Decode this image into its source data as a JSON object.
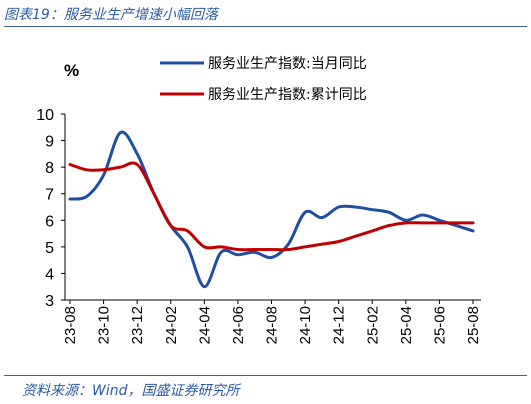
{
  "title": "图表19：服务业生产增速小幅回落",
  "source": "资料来源：Wind，国盛证券研究所",
  "chart_data": {
    "type": "line",
    "unit_label": "%",
    "x": [
      "23-08",
      "23-09",
      "23-10",
      "23-11",
      "23-12",
      "24-01",
      "24-02",
      "24-03",
      "24-04",
      "24-05",
      "24-06",
      "24-07",
      "24-08",
      "24-09",
      "24-10",
      "24-11",
      "24-12",
      "25-01",
      "25-02",
      "25-03",
      "25-04",
      "25-05",
      "25-06",
      "25-07",
      "25-08"
    ],
    "x_tick_labels": [
      "23-08",
      "23-10",
      "23-12",
      "24-02",
      "24-04",
      "24-06",
      "24-08",
      "24-10",
      "24-12",
      "25-02",
      "25-04",
      "25-06",
      "25-08"
    ],
    "ylim": [
      3,
      10
    ],
    "y_ticks": [
      3,
      4,
      5,
      6,
      7,
      8,
      9,
      10
    ],
    "legend_position": "top-right",
    "series": [
      {
        "name": "服务业生产指数:当月同比",
        "color": "#1f4fa3",
        "values": [
          6.8,
          6.9,
          7.7,
          9.3,
          8.5,
          7.0,
          5.8,
          5.0,
          3.5,
          4.8,
          4.7,
          4.8,
          4.6,
          5.1,
          6.3,
          6.1,
          6.5,
          6.5,
          6.4,
          6.3,
          6.0,
          6.2,
          6.0,
          5.8,
          5.6
        ]
      },
      {
        "name": "服务业生产指数:累计同比",
        "color": "#c00000",
        "values": [
          8.1,
          7.9,
          7.9,
          8.0,
          8.1,
          7.0,
          5.8,
          5.6,
          5.0,
          5.0,
          4.9,
          4.9,
          4.9,
          4.9,
          5.0,
          5.1,
          5.2,
          5.4,
          5.6,
          5.8,
          5.9,
          5.9,
          5.9,
          5.9,
          5.9
        ]
      }
    ]
  }
}
